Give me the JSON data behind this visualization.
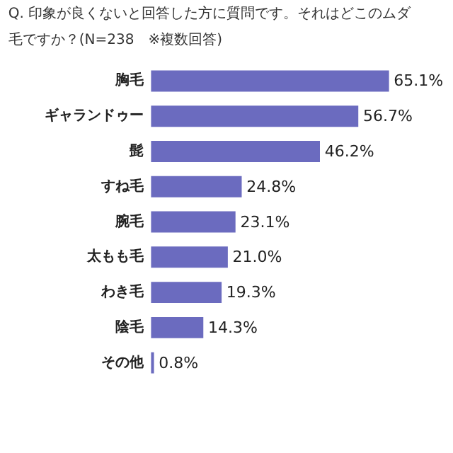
{
  "chart_data": {
    "type": "bar",
    "orientation": "horizontal",
    "title": "Q. 印象が良くないと回答した方に質問です。それはどこのムダ毛ですか？(N=238　※複数回答)",
    "categories": [
      "胸毛",
      "ギャランドゥー",
      "髭",
      "すね毛",
      "腕毛",
      "太もも毛",
      "わき毛",
      "陰毛",
      "その他"
    ],
    "values": [
      65.1,
      56.7,
      46.2,
      24.8,
      23.1,
      21.0,
      19.3,
      14.3,
      0.8
    ],
    "value_labels": [
      "65.1%",
      "56.7%",
      "46.2%",
      "24.8%",
      "23.1%",
      "21.0%",
      "19.3%",
      "14.3%",
      "0.8%"
    ],
    "color": "#6b6bbf",
    "relative": false,
    "grid": false
  }
}
